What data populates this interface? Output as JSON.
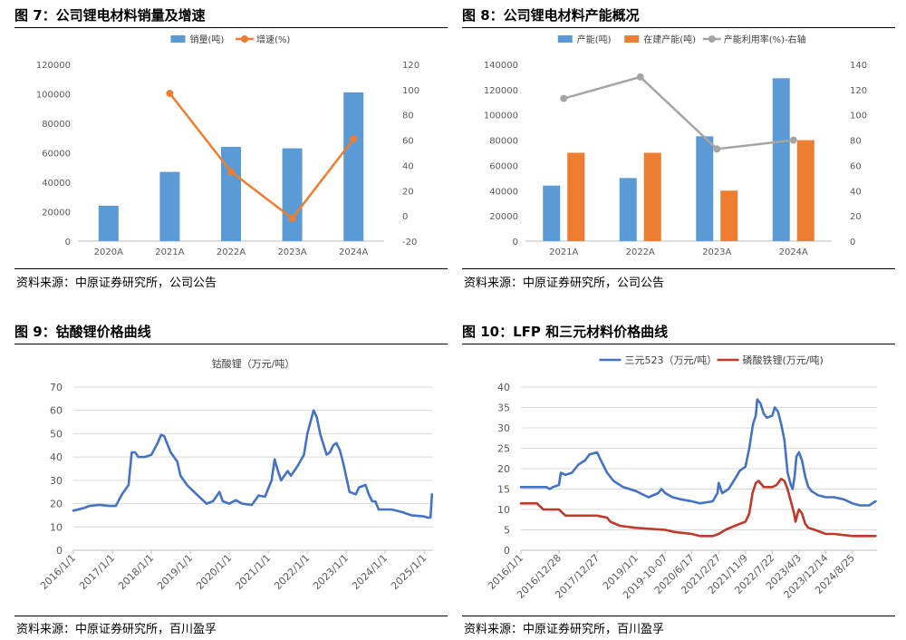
{
  "charts": [
    {
      "figure_title": "图 7：公司锂电材料销量及增速",
      "source": "资料来源：中原证券研究所，公司公告",
      "colors": {
        "bar": "#5B9BD5",
        "line": "#ED7D31"
      },
      "chart_data": {
        "type": "bar",
        "categories": [
          "2020A",
          "2021A",
          "2022A",
          "2023A",
          "2024A"
        ],
        "series": [
          {
            "name": "销量(吨)",
            "type": "bar",
            "axis": "left",
            "values": [
              24000,
              47000,
              64000,
              63000,
              101000
            ]
          },
          {
            "name": "增速(%)",
            "type": "line",
            "axis": "right",
            "values": [
              null,
              97,
              35,
              -2,
              61
            ]
          }
        ],
        "y_left": {
          "min": 0,
          "max": 120000,
          "ticks": [
            0,
            20000,
            40000,
            60000,
            80000,
            100000,
            120000
          ]
        },
        "y_right": {
          "min": -20,
          "max": 120,
          "ticks": [
            -20,
            0,
            20,
            40,
            60,
            80,
            100,
            120
          ]
        },
        "legend": "top-center",
        "grid": false
      }
    },
    {
      "figure_title": "图 8：公司锂电材料产能概况",
      "source": "资料来源：中原证券研究所，公司公告",
      "colors": {
        "capacity": "#5B9BD5",
        "building": "#ED7D31",
        "util": "#A5A5A5"
      },
      "chart_data": {
        "type": "bar",
        "categories": [
          "2021A",
          "2022A",
          "2023A",
          "2024A"
        ],
        "series": [
          {
            "name": "产能(吨)",
            "type": "bar",
            "axis": "left",
            "values": [
              44000,
              50000,
              83000,
              129000
            ]
          },
          {
            "name": "在建产能(吨)",
            "type": "bar",
            "axis": "left",
            "values": [
              70000,
              70000,
              40000,
              80000
            ]
          },
          {
            "name": "产能利用率(%)-右轴",
            "type": "line",
            "axis": "right",
            "values": [
              113,
              130,
              73,
              80
            ]
          }
        ],
        "y_left": {
          "min": 0,
          "max": 140000,
          "ticks": [
            0,
            20000,
            40000,
            60000,
            80000,
            100000,
            120000,
            140000
          ]
        },
        "y_right": {
          "min": 0,
          "max": 140,
          "ticks": [
            0,
            20,
            40,
            60,
            80,
            100,
            120,
            140
          ]
        },
        "legend": "top-center",
        "grid": false
      }
    },
    {
      "figure_title": "图 9：钴酸锂价格曲线",
      "source": "资料来源：中原证券研究所，百川盈孚",
      "colors": {
        "line": "#4472C4",
        "grid": "#D9D9D9"
      },
      "chart_data": {
        "type": "line",
        "title": "钴酸锂（万元/吨）",
        "x_ticks": [
          "2016/1/1",
          "2017/1/1",
          "2018/1/1",
          "2019/1/1",
          "2020/1/1",
          "2021/1/1",
          "2022/1/1",
          "2023/1/1",
          "2024/1/1",
          "2025/1/1"
        ],
        "y_ticks": [
          0,
          10,
          20,
          30,
          40,
          50,
          60,
          70
        ],
        "ylim": [
          0,
          70
        ],
        "grid": true,
        "series": [
          {
            "name": "钴酸锂（万元/吨）",
            "points": [
              [
                "2016-01-01",
                17
              ],
              [
                "2016-04-01",
                18
              ],
              [
                "2016-06-01",
                19
              ],
              [
                "2016-09-01",
                19.5
              ],
              [
                "2016-12-01",
                19
              ],
              [
                "2017-02-01",
                19
              ],
              [
                "2017-04-01",
                24
              ],
              [
                "2017-06-01",
                28
              ],
              [
                "2017-07-01",
                42
              ],
              [
                "2017-08-01",
                42
              ],
              [
                "2017-09-01",
                40
              ],
              [
                "2017-11-01",
                40
              ],
              [
                "2018-01-01",
                41
              ],
              [
                "2018-03-01",
                46
              ],
              [
                "2018-04-01",
                49.5
              ],
              [
                "2018-05-01",
                49
              ],
              [
                "2018-07-01",
                42
              ],
              [
                "2018-09-01",
                38
              ],
              [
                "2018-10-01",
                32
              ],
              [
                "2018-12-01",
                28
              ],
              [
                "2019-03-01",
                24
              ],
              [
                "2019-06-01",
                20
              ],
              [
                "2019-08-01",
                21
              ],
              [
                "2019-10-01",
                25
              ],
              [
                "2019-11-01",
                21
              ],
              [
                "2020-01-01",
                20
              ],
              [
                "2020-03-01",
                21.5
              ],
              [
                "2020-05-01",
                20
              ],
              [
                "2020-08-01",
                19.5
              ],
              [
                "2020-10-01",
                23.5
              ],
              [
                "2020-12-01",
                23
              ],
              [
                "2021-02-01",
                30
              ],
              [
                "2021-03-01",
                39
              ],
              [
                "2021-04-01",
                34
              ],
              [
                "2021-05-01",
                30
              ],
              [
                "2021-07-01",
                34
              ],
              [
                "2021-08-01",
                32
              ],
              [
                "2021-10-01",
                36
              ],
              [
                "2021-12-01",
                41
              ],
              [
                "2022-01-01",
                50
              ],
              [
                "2022-03-01",
                60
              ],
              [
                "2022-04-01",
                57
              ],
              [
                "2022-05-01",
                50
              ],
              [
                "2022-07-01",
                41
              ],
              [
                "2022-08-01",
                42
              ],
              [
                "2022-09-01",
                45
              ],
              [
                "2022-10-01",
                46
              ],
              [
                "2022-11-01",
                43
              ],
              [
                "2022-12-01",
                38
              ],
              [
                "2023-02-01",
                25
              ],
              [
                "2023-04-01",
                24
              ],
              [
                "2023-05-01",
                27
              ],
              [
                "2023-07-01",
                28
              ],
              [
                "2023-08-01",
                24
              ],
              [
                "2023-09-01",
                21
              ],
              [
                "2023-10-01",
                21
              ],
              [
                "2023-11-01",
                17.5
              ],
              [
                "2024-03-01",
                17.5
              ],
              [
                "2024-06-01",
                16.5
              ],
              [
                "2024-09-01",
                15
              ],
              [
                "2025-01-01",
                14.5
              ],
              [
                "2025-02-01",
                14
              ],
              [
                "2025-03-01",
                14
              ],
              [
                "2025-03-15",
                24
              ]
            ]
          }
        ]
      }
    },
    {
      "figure_title": "图 10：LFP 和三元材料价格曲线",
      "source": "资料来源：中原证券研究所，百川盈孚",
      "colors": {
        "ncm": "#4472C4",
        "lfp": "#C0392B",
        "grid": "#D9D9D9"
      },
      "chart_data": {
        "type": "line",
        "x_ticks": [
          "2016/1/1",
          "2016/12/28",
          "2017/12/27",
          "2019/1/1",
          "2019-10-07",
          "2020/6/17",
          "2021/2/27",
          "2021/11/9",
          "2022/7/22",
          "2023/4/3",
          "2023/12/14",
          "2024/8/25"
        ],
        "y_ticks": [
          0,
          5,
          10,
          15,
          20,
          25,
          30,
          35,
          40
        ],
        "ylim": [
          0,
          40
        ],
        "grid": true,
        "legend": "top-center",
        "series": [
          {
            "name": "三元523（万元/吨）",
            "points": [
              [
                "2016-01-01",
                15.5
              ],
              [
                "2016-09-01",
                15.5
              ],
              [
                "2016-10-01",
                15
              ],
              [
                "2016-11-01",
                15.5
              ],
              [
                "2016-12-28",
                16
              ],
              [
                "2017-01-15",
                19
              ],
              [
                "2017-03-01",
                18.5
              ],
              [
                "2017-05-01",
                19
              ],
              [
                "2017-07-01",
                21
              ],
              [
                "2017-09-01",
                22
              ],
              [
                "2017-10-15",
                23.5
              ],
              [
                "2017-12-27",
                24
              ],
              [
                "2018-02-01",
                22
              ],
              [
                "2018-04-01",
                19
              ],
              [
                "2018-06-01",
                17
              ],
              [
                "2018-09-01",
                15.5
              ],
              [
                "2019-01-01",
                14.5
              ],
              [
                "2019-05-01",
                13
              ],
              [
                "2019-08-01",
                14
              ],
              [
                "2019-09-01",
                15
              ],
              [
                "2019-10-07",
                14
              ],
              [
                "2019-12-15",
                13
              ],
              [
                "2020-03-01",
                12.5
              ],
              [
                "2020-06-17",
                12
              ],
              [
                "2020-09-01",
                11.5
              ],
              [
                "2021-01-01",
                12
              ],
              [
                "2021-02-15",
                14
              ],
              [
                "2021-02-27",
                16.5
              ],
              [
                "2021-04-01",
                14
              ],
              [
                "2021-06-01",
                15
              ],
              [
                "2021-08-01",
                17.5
              ],
              [
                "2021-09-15",
                19.5
              ],
              [
                "2021-11-09",
                20.5
              ],
              [
                "2021-12-15",
                25
              ],
              [
                "2022-01-20",
                31
              ],
              [
                "2022-02-15",
                33
              ],
              [
                "2022-03-01",
                37
              ],
              [
                "2022-04-01",
                36
              ],
              [
                "2022-05-01",
                33.5
              ],
              [
                "2022-06-01",
                32.5
              ],
              [
                "2022-07-22",
                33
              ],
              [
                "2022-08-15",
                35
              ],
              [
                "2022-09-15",
                34
              ],
              [
                "2022-10-15",
                31
              ],
              [
                "2022-11-15",
                27
              ],
              [
                "2022-12-15",
                19
              ],
              [
                "2023-01-15",
                16
              ],
              [
                "2023-02-01",
                15
              ],
              [
                "2023-02-20",
                18
              ],
              [
                "2023-03-10",
                23
              ],
              [
                "2023-04-03",
                24
              ],
              [
                "2023-05-01",
                22
              ],
              [
                "2023-06-01",
                18
              ],
              [
                "2023-07-01",
                15.5
              ],
              [
                "2023-08-01",
                14.5
              ],
              [
                "2023-10-01",
                13.5
              ],
              [
                "2023-12-14",
                13
              ],
              [
                "2024-03-01",
                13
              ],
              [
                "2024-06-01",
                12.5
              ],
              [
                "2024-08-25",
                11.5
              ],
              [
                "2024-11-01",
                11
              ],
              [
                "2025-02-01",
                11
              ],
              [
                "2025-03-01",
                11.5
              ],
              [
                "2025-04-01",
                12
              ]
            ]
          },
          {
            "name": "磷酸铁锂(万元/吨)",
            "points": [
              [
                "2016-01-01",
                11.5
              ],
              [
                "2016-06-01",
                11.5
              ],
              [
                "2016-08-01",
                10
              ],
              [
                "2016-12-28",
                10
              ],
              [
                "2017-03-01",
                8.5
              ],
              [
                "2017-12-27",
                8.5
              ],
              [
                "2018-04-01",
                8
              ],
              [
                "2018-05-01",
                7
              ],
              [
                "2018-08-01",
                6
              ],
              [
                "2019-01-01",
                5.5
              ],
              [
                "2019-10-07",
                5
              ],
              [
                "2020-01-01",
                4.5
              ],
              [
                "2020-06-17",
                4
              ],
              [
                "2020-09-01",
                3.5
              ],
              [
                "2021-01-01",
                3.5
              ],
              [
                "2021-02-27",
                4
              ],
              [
                "2021-05-01",
                5
              ],
              [
                "2021-08-01",
                6
              ],
              [
                "2021-11-09",
                7
              ],
              [
                "2021-12-15",
                9
              ],
              [
                "2022-01-15",
                14
              ],
              [
                "2022-02-15",
                16.5
              ],
              [
                "2022-03-15",
                17
              ],
              [
                "2022-05-01",
                15.5
              ],
              [
                "2022-07-22",
                15.5
              ],
              [
                "2022-09-01",
                16
              ],
              [
                "2022-10-15",
                17.5
              ],
              [
                "2022-11-15",
                17
              ],
              [
                "2022-12-15",
                15
              ],
              [
                "2023-01-15",
                12
              ],
              [
                "2023-02-15",
                9
              ],
              [
                "2023-03-01",
                7
              ],
              [
                "2023-03-20",
                9
              ],
              [
                "2023-04-03",
                10
              ],
              [
                "2023-05-01",
                9
              ],
              [
                "2023-06-01",
                6.5
              ],
              [
                "2023-07-01",
                5.5
              ],
              [
                "2023-09-01",
                5
              ],
              [
                "2023-12-14",
                4
              ],
              [
                "2024-03-01",
                4
              ],
              [
                "2024-08-25",
                3.5
              ],
              [
                "2025-01-01",
                3.5
              ],
              [
                "2025-04-01",
                3.5
              ]
            ]
          }
        ]
      }
    }
  ]
}
